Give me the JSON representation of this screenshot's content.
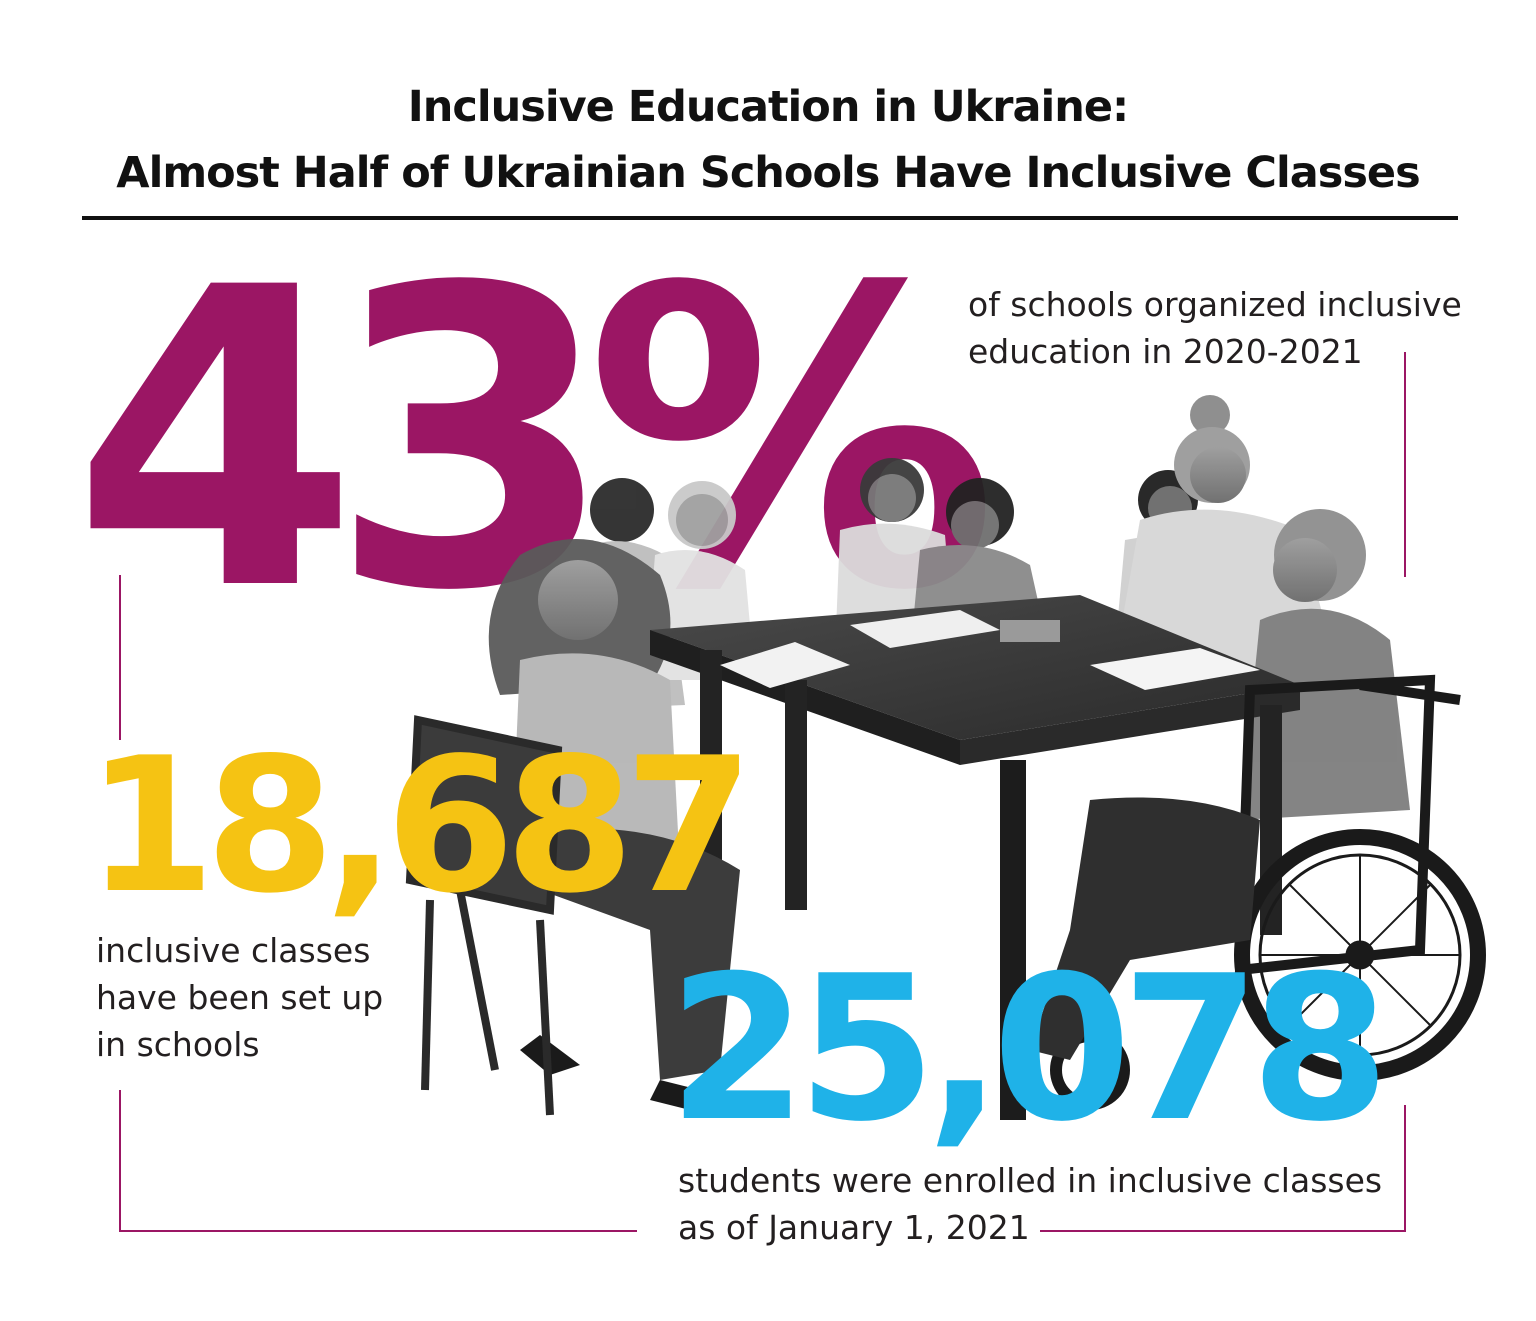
{
  "title": {
    "line1": "Inclusive Education in Ukraine:",
    "line2": "Almost Half of Ukrainian Schools Have Inclusive Classes"
  },
  "colors": {
    "stat_purple": "#9b1664",
    "stat_yellow": "#f5c313",
    "stat_blue": "#1fb2e8",
    "frame": "#9b1664",
    "text": "#231f20"
  },
  "stats": [
    {
      "value": "43%",
      "caption_lines": [
        "of schools organized inclusive",
        "education in 2020-2021"
      ]
    },
    {
      "value": "18,687",
      "caption_lines": [
        "inclusive classes",
        "have been set up",
        "in schools"
      ]
    },
    {
      "value": "25,078",
      "caption_lines": [
        "students were enrolled in inclusive classes",
        "as of January 1, 2021"
      ]
    }
  ],
  "photo": {
    "kind": "grayscale photo",
    "subject": "children and a teacher at a classroom table, one child in a wheelchair"
  }
}
